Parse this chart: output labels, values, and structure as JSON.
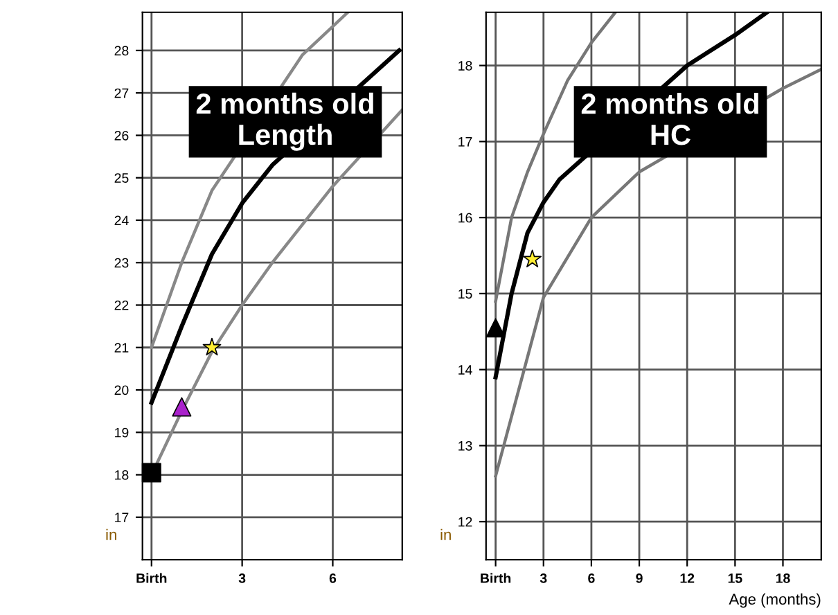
{
  "chart_data": [
    {
      "type": "line",
      "ylabel": "in",
      "annotations": [
        "2 months old\nLength"
      ],
      "grid": true,
      "line_style": "solid",
      "xlim": [
        -0.3,
        8.3
      ],
      "xticks": [
        {
          "value": 0,
          "label": "Birth"
        },
        3,
        6
      ],
      "ylim": [
        16,
        28.9
      ],
      "yticks": [
        17,
        18,
        19,
        20,
        21,
        22,
        23,
        24,
        25,
        26,
        27,
        28
      ],
      "series": [
        {
          "color": "#888888",
          "x": [
            0,
            1,
            2,
            3,
            4,
            6,
            8.3
          ],
          "values": [
            18.0,
            19.5,
            20.9,
            22.0,
            23.0,
            24.8,
            26.6
          ]
        },
        {
          "color": "#000000",
          "x": [
            0,
            1,
            2,
            3,
            4,
            8.2
          ],
          "values": [
            19.7,
            21.5,
            23.2,
            24.4,
            25.3,
            28.0
          ]
        },
        {
          "color": "#888888",
          "x": [
            0,
            1,
            2,
            5,
            6.5
          ],
          "values": [
            21.0,
            23.0,
            24.7,
            27.9,
            28.9
          ]
        },
        {
          "type": "scatter",
          "marker": "square",
          "color": "#000000",
          "x": [
            0
          ],
          "values": [
            18.05
          ]
        },
        {
          "type": "scatter",
          "marker": "triangle",
          "color": "#aa22cc",
          "x": [
            1.0
          ],
          "values": [
            19.6
          ]
        },
        {
          "type": "scatter",
          "marker": "star",
          "color": "#ffee33",
          "x": [
            2.0
          ],
          "values": [
            21.0
          ]
        }
      ]
    },
    {
      "type": "line",
      "ylabel": "in",
      "xlabel": "Age (months)",
      "annotations": [
        "2 months old\nHC"
      ],
      "grid": true,
      "line_style": "solid",
      "xlim": [
        -0.6,
        20.4
      ],
      "xticks": [
        {
          "value": 0,
          "label": "Birth"
        },
        3,
        6,
        9,
        12,
        15,
        18
      ],
      "ylim": [
        11.5,
        18.7
      ],
      "yticks": [
        12,
        13,
        14,
        15,
        16,
        17,
        18
      ],
      "series": [
        {
          "color": "#777777",
          "x": [
            0,
            3,
            6,
            9,
            18,
            20.4
          ],
          "values": [
            12.6,
            14.95,
            16.0,
            16.6,
            17.7,
            17.95
          ]
        },
        {
          "color": "#000000",
          "x": [
            0,
            1,
            2,
            3,
            4,
            12,
            15,
            17
          ],
          "values": [
            13.9,
            15.0,
            15.8,
            16.2,
            16.5,
            18.0,
            18.4,
            18.7
          ]
        },
        {
          "color": "#777777",
          "x": [
            0,
            1,
            2,
            3,
            4.5,
            6,
            7.5
          ],
          "values": [
            14.9,
            16.0,
            16.6,
            17.1,
            17.8,
            18.3,
            18.7
          ]
        },
        {
          "type": "scatter",
          "marker": "triangle",
          "color": "#000000",
          "x": [
            0
          ],
          "values": [
            14.55
          ]
        },
        {
          "type": "scatter",
          "marker": "star",
          "color": "#ffee33",
          "x": [
            2.3
          ],
          "values": [
            15.45
          ]
        }
      ]
    }
  ]
}
